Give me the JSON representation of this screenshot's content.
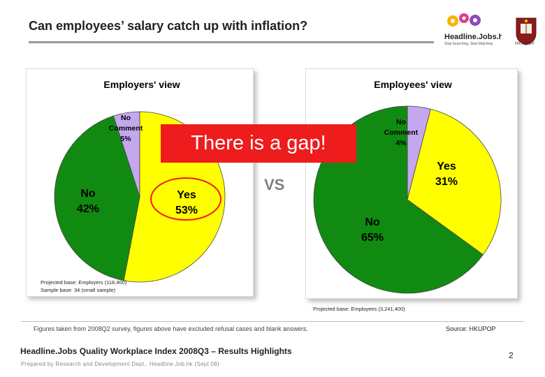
{
  "header": {
    "title_pre": "Can employees’ salary catch up with inflation",
    "title_u": "inflation",
    "title_post": "?",
    "logo_text": "Headline.Jobs.hk",
    "tagline": "Stop Searching, Start Matching",
    "hku_label": "HKUPOP"
  },
  "callout": {
    "gap_text": "There is a gap!",
    "vs_text": "VS"
  },
  "chart_data": [
    {
      "type": "pie",
      "title": "Employers' view",
      "slices": [
        {
          "label_line1": "No",
          "label_line2": "Comment",
          "label_line3": "5%",
          "value": 5,
          "color": "#c5a7ef"
        },
        {
          "label_line1": "Yes",
          "label_line2": "53%",
          "value": 53,
          "color": "#ffff00"
        },
        {
          "label_line1": "No",
          "label_line2": "42%",
          "value": 42,
          "color": "#118a11"
        }
      ],
      "base_line1": "Projected base: Employers (118,400)",
      "base_line2": "Sample base: 34 (small sample)"
    },
    {
      "type": "pie",
      "title": "Employees' view",
      "slices": [
        {
          "label_line1": "No",
          "label_line2": "Comment",
          "label_line3": "4%",
          "value": 4,
          "color": "#c5a7ef"
        },
        {
          "label_line1": "Yes",
          "label_line2": "31%",
          "value": 31,
          "color": "#ffff00"
        },
        {
          "label_line1": "No",
          "label_line2": "65%",
          "value": 65,
          "color": "#118a11"
        }
      ],
      "base_line1": "Projected base: Employees (3,241,400)"
    }
  ],
  "footer": {
    "note": "Figures taken from 2008Q2 survey, figures above have excluded refusal cases and blank answers.",
    "source": "Source: HKUPOP",
    "title": "Headline.Jobs Quality Workplace Index 2008Q3 – Results Highlights",
    "prepared": "Prepared by Research and Development Dept., Headline.Job.hk (Sept 08)",
    "page": "2"
  }
}
